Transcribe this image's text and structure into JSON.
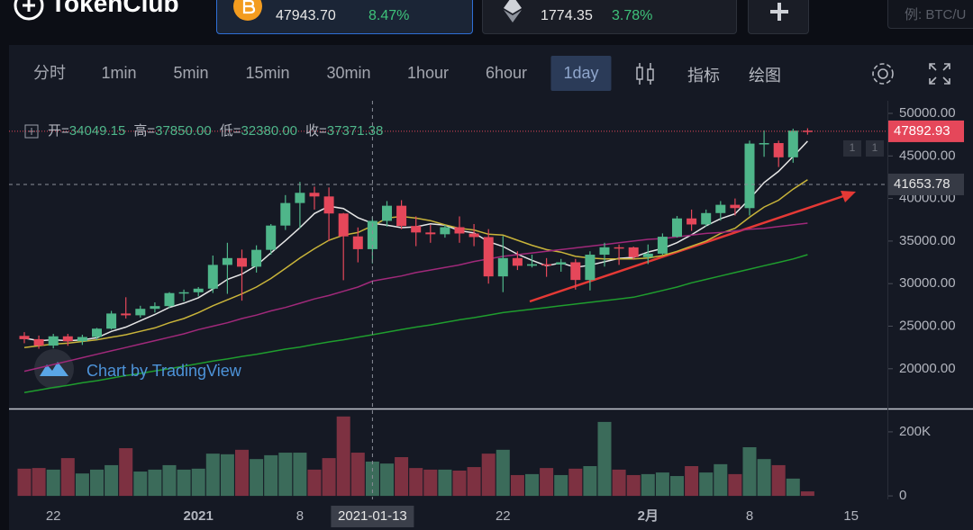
{
  "header": {
    "logo": "TokenClub",
    "tickers": [
      {
        "price": "47943.70",
        "change": "8.47%"
      },
      {
        "price": "1774.35",
        "change": "3.78%"
      }
    ],
    "search_placeholder": "例: BTC/U"
  },
  "toolbar": {
    "intervals": [
      "分时",
      "1min",
      "5min",
      "15min",
      "30min",
      "1hour",
      "6hour",
      "1day"
    ],
    "active_interval": "1day",
    "tools": [
      "指标",
      "绘图"
    ]
  },
  "chart_data": {
    "type": "candlestick",
    "categories": [
      null,
      null,
      "22",
      null,
      null,
      null,
      null,
      null,
      null,
      null,
      null,
      null,
      "2021",
      null,
      null,
      null,
      null,
      null,
      null,
      "8",
      null,
      null,
      null,
      null,
      null,
      null,
      null,
      null,
      null,
      null,
      null,
      null,
      null,
      "22",
      null,
      null,
      null,
      null,
      null,
      null,
      null,
      null,
      null,
      "2月",
      null,
      null,
      null,
      null,
      null,
      null,
      "8",
      null,
      null,
      null,
      null,
      null,
      null,
      "15"
    ],
    "open": [
      23860,
      23477,
      22720,
      23810,
      23230,
      23730,
      24710,
      26490,
      26280,
      27040,
      27360,
      28890,
      28990,
      29410,
      32200,
      33000,
      31990,
      33970,
      36820,
      39470,
      40670,
      40240,
      38240,
      35550,
      34049.15,
      37371.38,
      39150,
      36770,
      36010,
      35800,
      36630,
      35890,
      35470,
      30850,
      33000,
      32100,
      32280,
      32250,
      32510,
      30430,
      33400,
      34270,
      34260,
      33110,
      33520,
      35510,
      37660,
      36950,
      38290,
      39260,
      38870,
      46450,
      46510,
      44840,
      47970,
      null,
      null,
      null
    ],
    "high": [
      24300,
      23900,
      24100,
      24100,
      24000,
      24800,
      26800,
      28400,
      27400,
      27800,
      29000,
      29300,
      29600,
      33300,
      34800,
      34000,
      34500,
      37000,
      40400,
      41950,
      41400,
      41300,
      38300,
      36600,
      37850,
      39700,
      39800,
      37900,
      36900,
      36900,
      37900,
      37000,
      36400,
      35600,
      33800,
      33400,
      33000,
      32900,
      32900,
      33800,
      34800,
      34600,
      34350,
      34600,
      35900,
      37950,
      38700,
      38700,
      39700,
      40000,
      46800,
      48000,
      46800,
      48200,
      48250,
      null,
      null,
      null
    ],
    "low": [
      23000,
      22350,
      22400,
      22700,
      22800,
      23400,
      24600,
      25900,
      26000,
      26600,
      27100,
      27900,
      28500,
      28900,
      28800,
      28000,
      31300,
      33400,
      36300,
      36500,
      38700,
      35000,
      30400,
      32500,
      32380,
      36700,
      36400,
      34400,
      34800,
      35400,
      34800,
      34400,
      30000,
      29000,
      31600,
      31900,
      30800,
      31400,
      29300,
      29200,
      32000,
      32200,
      32800,
      32300,
      33400,
      35400,
      36200,
      36700,
      37400,
      38000,
      38000,
      44900,
      43700,
      44200,
      47500,
      null,
      null,
      null
    ],
    "close": [
      23477,
      22720,
      23810,
      23230,
      23730,
      24710,
      26490,
      26280,
      27040,
      27360,
      28890,
      28990,
      29410,
      32200,
      33000,
      31990,
      33970,
      36820,
      39470,
      40670,
      40240,
      38240,
      35550,
      34049.15,
      37371.38,
      39150,
      36770,
      36010,
      35800,
      36630,
      35890,
      35470,
      30850,
      33000,
      32100,
      32280,
      32250,
      32510,
      30430,
      33400,
      34270,
      34260,
      33110,
      33520,
      35510,
      37660,
      36950,
      38290,
      39260,
      38870,
      46450,
      46510,
      44840,
      47970,
      47892.93,
      null,
      null,
      null
    ],
    "volume": [
      85000,
      87000,
      82000,
      118000,
      70000,
      82000,
      96000,
      149000,
      76000,
      82000,
      96000,
      82000,
      85000,
      132000,
      130000,
      144000,
      115000,
      127000,
      135000,
      135000,
      82000,
      118000,
      248000,
      135000,
      107000,
      101000,
      121000,
      87000,
      82000,
      82000,
      79000,
      90000,
      132000,
      144000,
      65000,
      68000,
      87000,
      65000,
      85000,
      93000,
      231000,
      82000,
      65000,
      68000,
      73000,
      62000,
      93000,
      73000,
      99000,
      68000,
      152000,
      115000,
      96000,
      54000,
      14000,
      null,
      null,
      null
    ],
    "series": [
      {
        "color": "#e6e6e6",
        "values": [
          23600,
          23300,
          23400,
          23300,
          23390,
          23640,
          24390,
          24890,
          25650,
          26380,
          27210,
          27710,
          28340,
          29370,
          30500,
          31120,
          32110,
          33600,
          35050,
          36580,
          38230,
          39090,
          38830,
          37750,
          37090,
          36870,
          36580,
          36670,
          37020,
          36870,
          36220,
          35960,
          34930,
          34370,
          33460,
          32740,
          32100,
          32430,
          31910,
          32170,
          32570,
          32970,
          33090,
          33710,
          34130,
          34810,
          35740,
          36790,
          37620,
          38200,
          39950,
          41870,
          43190,
          44930,
          46730,
          null,
          null,
          null
        ]
      },
      {
        "color": "#c9b43a",
        "values": [
          22500,
          22700,
          22900,
          23000,
          23200,
          23400,
          23700,
          24000,
          24400,
          24800,
          25400,
          25900,
          26600,
          27400,
          28100,
          28800,
          29600,
          30600,
          31800,
          33000,
          34100,
          35100,
          35700,
          36000,
          36800,
          37700,
          37900,
          37700,
          37400,
          36900,
          36500,
          36300,
          35800,
          35700,
          35100,
          34500,
          34000,
          33700,
          33200,
          33000,
          32900,
          32900,
          32900,
          33000,
          33300,
          33800,
          34400,
          35000,
          35900,
          36500,
          37800,
          39000,
          39800,
          41100,
          42200,
          null,
          null,
          null
        ]
      },
      {
        "color": "#a0297a",
        "values": [
          19700,
          20100,
          20500,
          20900,
          21300,
          21700,
          22100,
          22500,
          22900,
          23300,
          23700,
          24100,
          24600,
          25000,
          25400,
          25900,
          26300,
          26800,
          27200,
          27700,
          28200,
          28600,
          29100,
          29600,
          30300,
          30600,
          30900,
          31300,
          31600,
          31900,
          32200,
          32600,
          32900,
          33200,
          33400,
          33600,
          33800,
          34000,
          34200,
          34400,
          34600,
          34800,
          35000,
          35200,
          35300,
          35500,
          35700,
          35900,
          36000,
          36200,
          36400,
          36500,
          36700,
          36900,
          37100,
          null,
          null,
          null
        ]
      },
      {
        "color": "#1f9d2e",
        "values": [
          17200,
          17500,
          17800,
          18050,
          18350,
          18600,
          18900,
          19200,
          19450,
          19750,
          20000,
          20300,
          20600,
          20900,
          21150,
          21450,
          21700,
          22000,
          22300,
          22550,
          22850,
          23150,
          23400,
          23700,
          24000,
          24300,
          24600,
          24900,
          25150,
          25450,
          25750,
          26000,
          26300,
          26600,
          26800,
          27000,
          27200,
          27400,
          27600,
          27800,
          28000,
          28200,
          28400,
          28800,
          29200,
          29600,
          30100,
          30500,
          30900,
          31300,
          31700,
          32100,
          32500,
          32900,
          33400,
          null,
          null,
          null
        ]
      }
    ],
    "up_color": "#4fb68a",
    "down_color": "#e5475a",
    "volume_up_color": "#3b6b5a",
    "volume_down_color": "#7d3141",
    "ylim": [
      15540,
      51480
    ],
    "yticks": [
      {
        "value": 20000,
        "label": "20000.00"
      },
      {
        "value": 25000,
        "label": "25000.00"
      },
      {
        "value": 30000,
        "label": "30000.00"
      },
      {
        "value": 35000,
        "label": "35000.00"
      },
      {
        "value": 40000,
        "label": "40000.00"
      },
      {
        "value": 45000,
        "label": "45000.00"
      },
      {
        "value": 50000,
        "label": "50000.00"
      }
    ],
    "volume_ylim": [
      -11000,
      256000
    ],
    "volume_yticks": [
      0,
      {
        "value": 200000,
        "label": "200K"
      }
    ],
    "ohlc_legend": {
      "labels": [
        "开=",
        "高=",
        "低=",
        "收="
      ],
      "values": [
        34049.15,
        37850,
        32380,
        37371.38
      ],
      "value_labels": [
        "34049.15",
        "37850.00",
        "32380.00",
        "37371.38"
      ]
    },
    "crosshair_date": "2021-01-13",
    "crosshair_price": 41653.78,
    "pane_controls": [
      "1",
      "1"
    ],
    "watermark": "Chart by TradingView"
  }
}
